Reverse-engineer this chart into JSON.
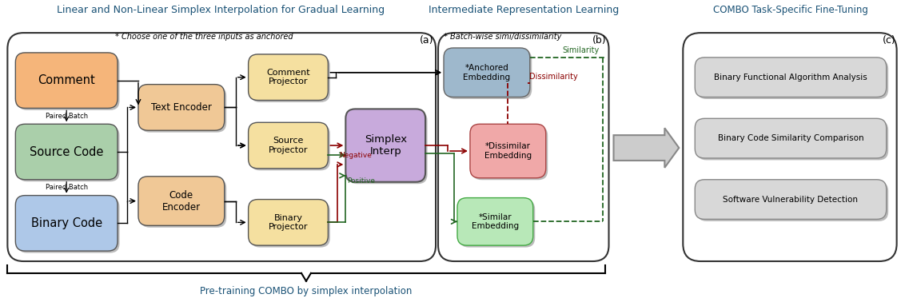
{
  "title_left": "Linear and Non-Linear Simplex Interpolation for Gradual Learning",
  "title_middle": "Intermediate Representation Learning",
  "title_right": "COMBO Task-Specific Fine-Tuning",
  "subtitle_bottom": "Pre-training COMBO by simplex interpolation",
  "note_a": "* Choose one of the three inputs as anchored",
  "note_b": "* Batch-wise simi/dissimilarity",
  "label_a": "(a)",
  "label_b": "(b)",
  "label_c": "(c)",
  "bg_color": "#ffffff",
  "title_color": "#1a5276",
  "box_colors": {
    "comment": "#f5b57a",
    "source_code": "#aacfaa",
    "binary_code": "#aec8e8",
    "text_encoder": "#f0c896",
    "code_encoder": "#f0c896",
    "comment_proj": "#f5e0a0",
    "source_proj": "#f5e0a0",
    "binary_proj": "#f5e0a0",
    "simplex": "#c8aadc",
    "anchored": "#9eb8cc",
    "dissimilar": "#f0a8a8",
    "similar": "#b8e8b8",
    "task1": "#d8d8d8",
    "task2": "#d8d8d8",
    "task3": "#d8d8d8"
  },
  "arrow_colors": {
    "black": "#000000",
    "dark_red": "#8b0000",
    "dark_green": "#226622",
    "gray": "#888888"
  }
}
